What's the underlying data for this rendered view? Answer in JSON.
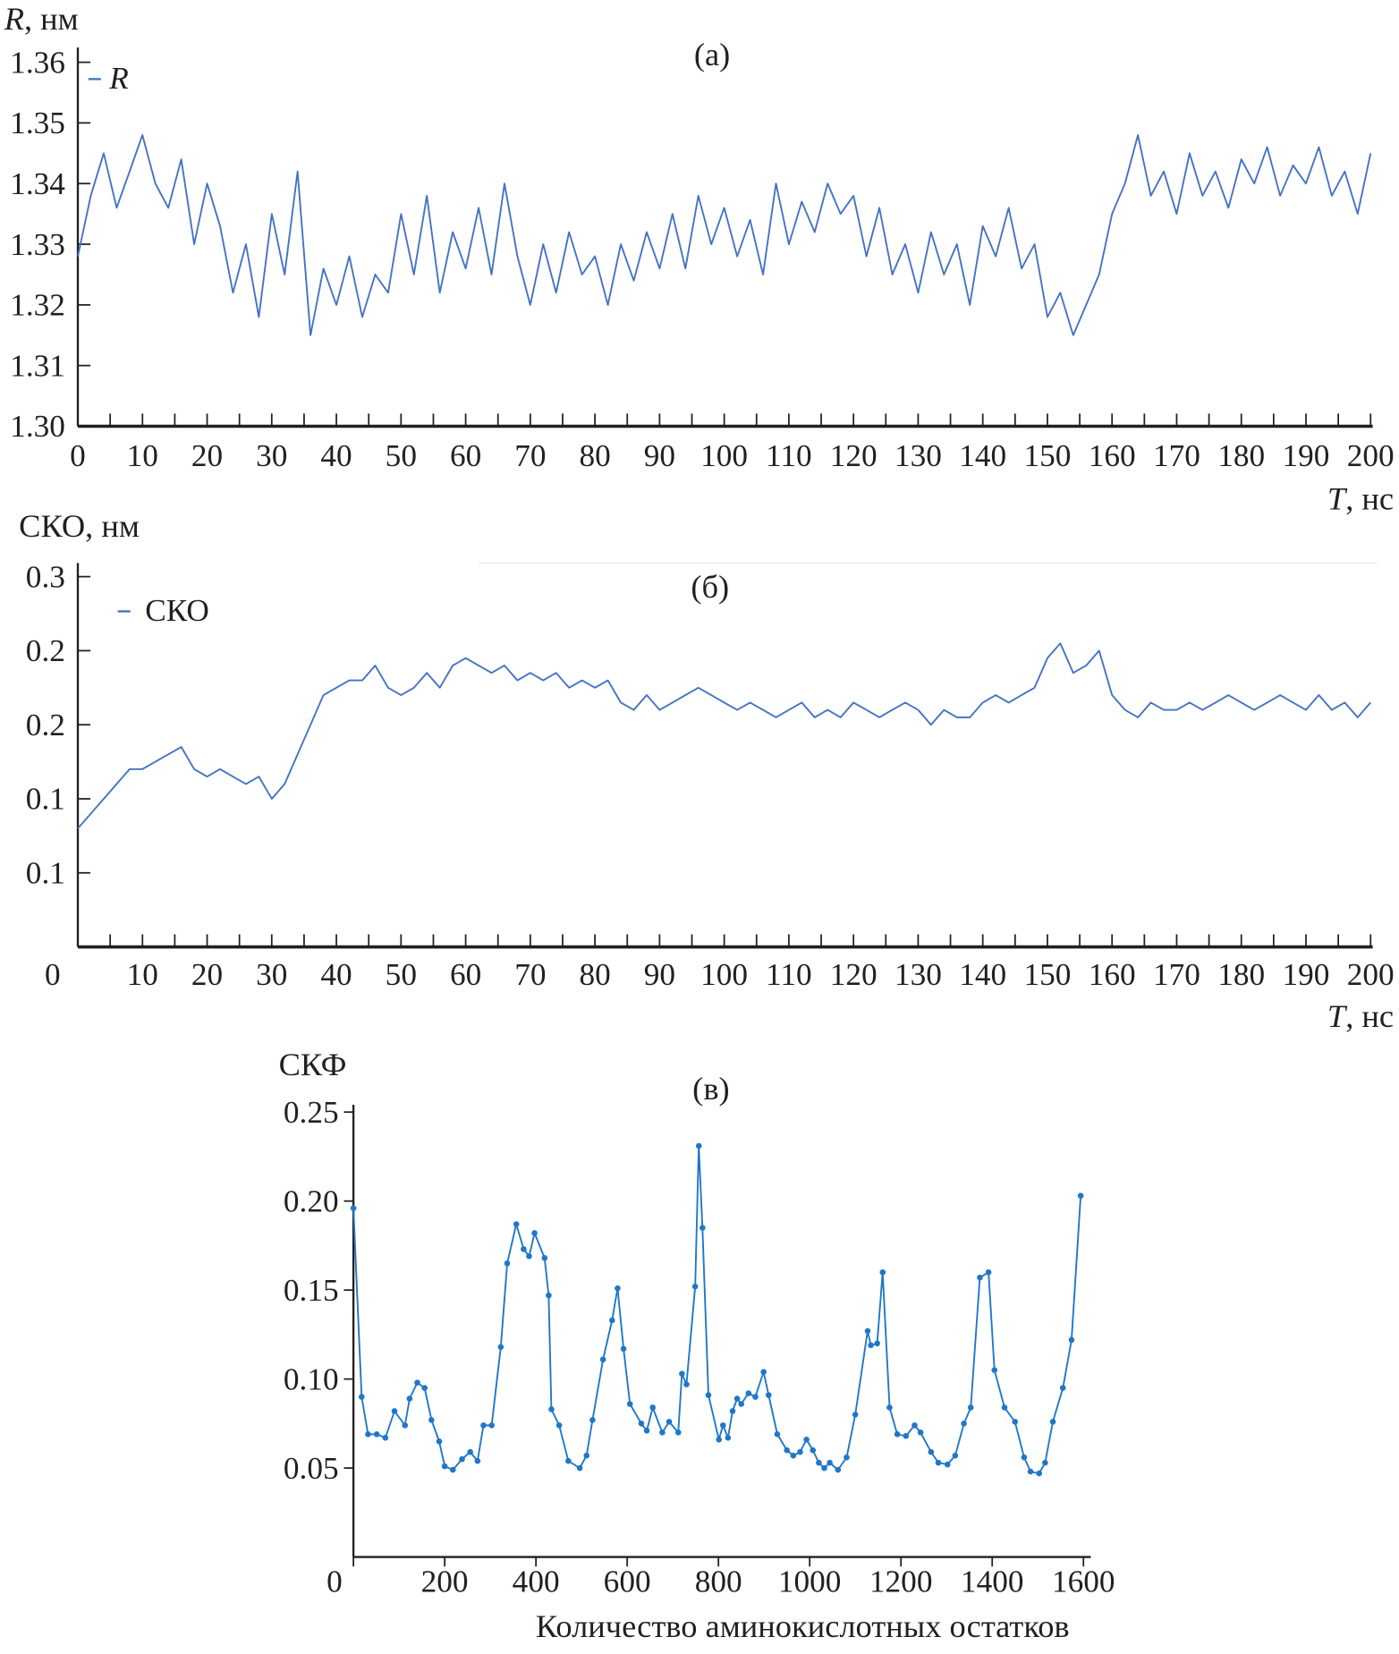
{
  "chart_data": [
    {
      "type": "line",
      "panel_label": "(а)",
      "ylabel_var": "R",
      "ylabel_unit": ", нм",
      "xlabel_var": "T",
      "xlabel_unit": ", нс",
      "legend": "R",
      "legend_placement": "top-left",
      "color": "#4472c4",
      "xlim": [
        0,
        200
      ],
      "ylim": [
        1.3,
        1.36
      ],
      "xticks": [
        0,
        10,
        20,
        30,
        40,
        50,
        60,
        70,
        80,
        90,
        100,
        110,
        120,
        130,
        140,
        150,
        160,
        170,
        180,
        190,
        200
      ],
      "yticks": [
        1.3,
        1.31,
        1.32,
        1.33,
        1.34,
        1.35,
        1.36
      ],
      "ytick_labels": [
        "1.30",
        "1.31",
        "1.32",
        "1.33",
        "1.34",
        "1.35",
        "1.36"
      ],
      "x_step": 2,
      "values": [
        1.328,
        1.338,
        1.345,
        1.336,
        1.342,
        1.348,
        1.34,
        1.336,
        1.344,
        1.33,
        1.34,
        1.333,
        1.322,
        1.33,
        1.318,
        1.335,
        1.325,
        1.342,
        1.315,
        1.326,
        1.32,
        1.328,
        1.318,
        1.325,
        1.322,
        1.335,
        1.325,
        1.338,
        1.322,
        1.332,
        1.326,
        1.336,
        1.325,
        1.34,
        1.328,
        1.32,
        1.33,
        1.322,
        1.332,
        1.325,
        1.328,
        1.32,
        1.33,
        1.324,
        1.332,
        1.326,
        1.335,
        1.326,
        1.338,
        1.33,
        1.336,
        1.328,
        1.334,
        1.325,
        1.34,
        1.33,
        1.337,
        1.332,
        1.34,
        1.335,
        1.338,
        1.328,
        1.336,
        1.325,
        1.33,
        1.322,
        1.332,
        1.325,
        1.33,
        1.32,
        1.333,
        1.328,
        1.336,
        1.326,
        1.33,
        1.318,
        1.322,
        1.315,
        1.32,
        1.325,
        1.335,
        1.34,
        1.348,
        1.338,
        1.342,
        1.335,
        1.345,
        1.338,
        1.342,
        1.336,
        1.344,
        1.34,
        1.346,
        1.338,
        1.343,
        1.34,
        1.346,
        1.338,
        1.342,
        1.335,
        1.345
      ]
    },
    {
      "type": "line",
      "panel_label": "(б)",
      "ylabel": "СКО, нм",
      "xlabel_var": "T",
      "xlabel_unit": ", нс",
      "legend": "СКО",
      "legend_placement": "top-left",
      "color": "#4472c4",
      "xlim": [
        0,
        200
      ],
      "ylim": [
        0.05,
        0.3
      ],
      "xticks": [
        0,
        10,
        20,
        30,
        40,
        50,
        60,
        70,
        80,
        90,
        100,
        110,
        120,
        130,
        140,
        150,
        160,
        170,
        180,
        190,
        200
      ],
      "yticks": [
        0.3,
        0.25,
        0.2,
        0.15,
        0.1
      ],
      "ytick_labels": [
        "0.3",
        "0.2",
        "0.2",
        "0.1",
        "0.1"
      ],
      "x_step": 2,
      "values": [
        0.13,
        0.14,
        0.15,
        0.16,
        0.17,
        0.17,
        0.175,
        0.18,
        0.185,
        0.17,
        0.165,
        0.17,
        0.165,
        0.16,
        0.165,
        0.15,
        0.16,
        0.18,
        0.2,
        0.22,
        0.225,
        0.23,
        0.23,
        0.24,
        0.225,
        0.22,
        0.225,
        0.235,
        0.225,
        0.24,
        0.245,
        0.24,
        0.235,
        0.24,
        0.23,
        0.235,
        0.23,
        0.235,
        0.225,
        0.23,
        0.225,
        0.23,
        0.215,
        0.21,
        0.22,
        0.21,
        0.215,
        0.22,
        0.225,
        0.22,
        0.215,
        0.21,
        0.215,
        0.21,
        0.205,
        0.21,
        0.215,
        0.205,
        0.21,
        0.205,
        0.215,
        0.21,
        0.205,
        0.21,
        0.215,
        0.21,
        0.2,
        0.21,
        0.205,
        0.205,
        0.215,
        0.22,
        0.215,
        0.22,
        0.225,
        0.245,
        0.255,
        0.235,
        0.24,
        0.25,
        0.22,
        0.21,
        0.205,
        0.215,
        0.21,
        0.21,
        0.215,
        0.21,
        0.215,
        0.22,
        0.215,
        0.21,
        0.215,
        0.22,
        0.215,
        0.21,
        0.22,
        0.21,
        0.215,
        0.205,
        0.215
      ]
    },
    {
      "type": "line",
      "panel_label": "(в)",
      "ylabel": "СКФ",
      "xlabel": "Количество аминокислотных остатков",
      "color": "#1f77c8",
      "markers": true,
      "xlim": [
        0,
        1600
      ],
      "ylim": [
        0,
        0.25
      ],
      "xticks": [
        0,
        200,
        400,
        600,
        800,
        1000,
        1200,
        1400,
        1600
      ],
      "yticks": [
        0.05,
        0.1,
        0.15,
        0.2,
        0.25
      ],
      "ytick_labels": [
        "0.05",
        "0.10",
        "0.15",
        "0.20",
        "0.25"
      ],
      "x": [
        0,
        18,
        32,
        51,
        70,
        90,
        113,
        123,
        140,
        156,
        171,
        188,
        200,
        218,
        238,
        256,
        272,
        285,
        303,
        323,
        337,
        357,
        373,
        385,
        397,
        419,
        428,
        434,
        451,
        471,
        496,
        511,
        524,
        547,
        567,
        579,
        592,
        606,
        631,
        643,
        656,
        677,
        692,
        712,
        720,
        730,
        749,
        757,
        765,
        778,
        801,
        810,
        821,
        831,
        841,
        850,
        866,
        881,
        899,
        910,
        929,
        950,
        964,
        979,
        993,
        1007,
        1020,
        1032,
        1044,
        1062,
        1081,
        1100,
        1127,
        1134,
        1148,
        1160,
        1175,
        1192,
        1211,
        1230,
        1243,
        1266,
        1282,
        1302,
        1319,
        1338,
        1353,
        1373,
        1392,
        1405,
        1427,
        1450,
        1470,
        1484,
        1503,
        1516,
        1533,
        1555,
        1574,
        1594
      ],
      "y": [
        0.196,
        0.09,
        0.069,
        0.069,
        0.067,
        0.082,
        0.074,
        0.089,
        0.098,
        0.095,
        0.077,
        0.065,
        0.051,
        0.049,
        0.055,
        0.059,
        0.054,
        0.074,
        0.074,
        0.118,
        0.165,
        0.187,
        0.173,
        0.169,
        0.182,
        0.168,
        0.147,
        0.083,
        0.074,
        0.054,
        0.05,
        0.057,
        0.077,
        0.111,
        0.133,
        0.151,
        0.117,
        0.086,
        0.075,
        0.071,
        0.084,
        0.07,
        0.076,
        0.07,
        0.103,
        0.097,
        0.152,
        0.231,
        0.185,
        0.091,
        0.066,
        0.074,
        0.067,
        0.082,
        0.089,
        0.086,
        0.092,
        0.09,
        0.104,
        0.091,
        0.069,
        0.06,
        0.057,
        0.059,
        0.066,
        0.06,
        0.053,
        0.05,
        0.053,
        0.049,
        0.056,
        0.08,
        0.127,
        0.119,
        0.12,
        0.16,
        0.084,
        0.069,
        0.068,
        0.074,
        0.07,
        0.059,
        0.053,
        0.052,
        0.057,
        0.075,
        0.084,
        0.157,
        0.16,
        0.105,
        0.084,
        0.076,
        0.056,
        0.048,
        0.047,
        0.053,
        0.076,
        0.095,
        0.122,
        0.203
      ]
    }
  ]
}
